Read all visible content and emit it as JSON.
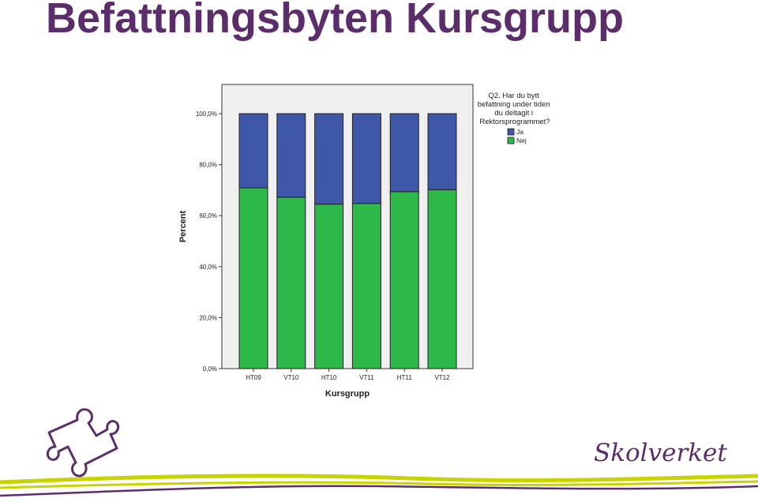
{
  "slide": {
    "title": "Befattningsbyten Kursgrupp",
    "brand": "Skolverket"
  },
  "colors": {
    "title": "#5b2e6b",
    "ja": "#3f57a8",
    "nej": "#2db84a",
    "plot_background": "#f0f0f0",
    "brand_wave": "#c8d400",
    "brand_purple": "#5b2e6b"
  },
  "icons": {
    "logo": "puzzle-piece-icon"
  },
  "chart_data": {
    "type": "bar",
    "stacked": true,
    "categories": [
      "HT09",
      "VT10",
      "HT10",
      "VT11",
      "HT11",
      "VT12"
    ],
    "series": [
      {
        "name": "Nej",
        "values": [
          70.9,
          67.2,
          64.5,
          64.8,
          69.4,
          70.2
        ]
      },
      {
        "name": "Ja",
        "values": [
          29.1,
          32.8,
          35.5,
          35.2,
          30.6,
          29.8
        ]
      }
    ],
    "xlabel": "Kursgrupp",
    "ylabel": "Percent",
    "ylim": [
      0,
      100
    ],
    "yticks": [
      "0,0%",
      "20,0%",
      "40,0%",
      "60,0%",
      "80,0%",
      "100,0%"
    ],
    "legend": {
      "title_lines": [
        "Q2. Har du bytt",
        "befattning under tiden",
        "du deltagit i",
        "Rektorsprogrammet?"
      ],
      "entries": [
        "Ja",
        "Nej"
      ],
      "placement": "top-right"
    },
    "grid": false
  }
}
